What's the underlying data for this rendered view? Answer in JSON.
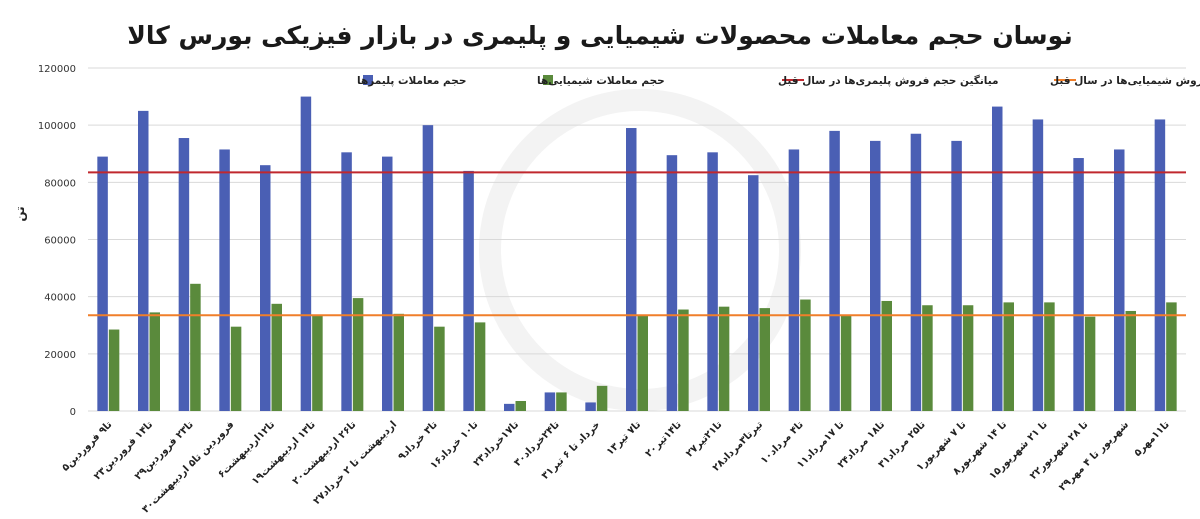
{
  "chart_data": {
    "type": "bar",
    "title": "نوسان حجم معاملات محصولات شیمیایی و پلیمری در بازار فیزیکی بورس کالا",
    "ylabel": "تن",
    "ylim": [
      0,
      120000
    ],
    "y_ticks": [
      0,
      20000,
      40000,
      60000,
      80000,
      100000,
      120000
    ],
    "y_tick_labels": [
      "0",
      "20000",
      "40000",
      "60000",
      "80000",
      "100000",
      "120000"
    ],
    "grid": true,
    "legend_position": "top",
    "categories": [
      "۵تا۹ فروردین",
      "۲۳تا۱۴ فروردین",
      "۲۹تا۲۳ فروردین",
      "۳۰فروردین تا۵ اردیبهشت",
      "۶تا۱۲اردیبهشت",
      "۱۹تا۱۳ اردیبهشت",
      "۲۰تا۲۶ اردیبهشت",
      "۲۷اردیبهشت تا ۲ خرداد",
      "۹تا۳ خرداد",
      "۱۶تا۱۰ خرداد",
      "۲۳تا۱۷خرداد",
      "۳۰تا۲۴خرداد",
      "۳۱خرداد تا ۶ تیر",
      "۱۳تا۷ تیر",
      "۲۰تا۱۴تیر",
      "۲۷تا۲۱تیر",
      "۲۸تیرتا۳مرداد",
      "۱۰تا۴ مرداد",
      "۱۱تا ۱۷مرداد",
      "۲۴تا۱۸ مرداد",
      "۳۱تا۲۵ مرداد",
      "۱تا ۷ شهریور",
      "۸تا ۱۴ شهریور",
      "۱۵تا ۲۱ شهریور",
      "۲۲تا ۲۸ شهریور",
      "۲۹شهریور تا ۴ مهر",
      "۵تا۱۱مهر"
    ],
    "series": [
      {
        "name": "حجم معاملات پلیمرها",
        "color": "#4a5fb4",
        "values": [
          89000,
          105000,
          95500,
          91500,
          86000,
          110000,
          90500,
          89000,
          100000,
          84000,
          2500,
          6500,
          3000,
          99000,
          89500,
          90500,
          82500,
          91500,
          98000,
          94500,
          97000,
          94500,
          106500,
          102000,
          88500,
          91500,
          102000
        ]
      },
      {
        "name": "حجم معاملات شیمیایی‌ها",
        "color": "#5a8a3c",
        "values": [
          28500,
          34500,
          44500,
          29500,
          37500,
          33500,
          39500,
          34000,
          29500,
          31000,
          3500,
          6500,
          8800,
          33500,
          35500,
          36500,
          36000,
          39000,
          33500,
          38500,
          37000,
          37000,
          38000,
          38000,
          33000,
          35000,
          38000
        ]
      }
    ],
    "reference_lines": [
      {
        "name": "میانگین حجم فروش پلیمری‌ها در سال قبل",
        "value": 83500,
        "color": "#c0282e"
      },
      {
        "name": "میانگین حجم فروش شیمیایی‌ها در سال قبل",
        "value": 33500,
        "color": "#f07f2a"
      }
    ]
  }
}
